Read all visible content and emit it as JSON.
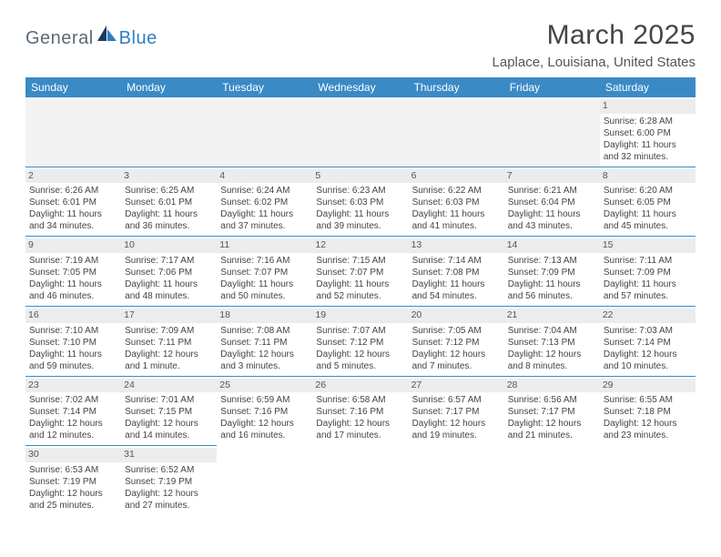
{
  "logo": {
    "text1": "General",
    "text2": "Blue"
  },
  "title": "March 2025",
  "location": "Laplace, Louisiana, United States",
  "header_bg": "#3a8ac6",
  "border_color": "#3a8ac6",
  "daynum_bg": "#ececec",
  "dow": [
    "Sunday",
    "Monday",
    "Tuesday",
    "Wednesday",
    "Thursday",
    "Friday",
    "Saturday"
  ],
  "weeks": [
    [
      null,
      null,
      null,
      null,
      null,
      null,
      {
        "n": "1",
        "sr": "Sunrise: 6:28 AM",
        "ss": "Sunset: 6:00 PM",
        "d1": "Daylight: 11 hours",
        "d2": "and 32 minutes."
      }
    ],
    [
      {
        "n": "2",
        "sr": "Sunrise: 6:26 AM",
        "ss": "Sunset: 6:01 PM",
        "d1": "Daylight: 11 hours",
        "d2": "and 34 minutes."
      },
      {
        "n": "3",
        "sr": "Sunrise: 6:25 AM",
        "ss": "Sunset: 6:01 PM",
        "d1": "Daylight: 11 hours",
        "d2": "and 36 minutes."
      },
      {
        "n": "4",
        "sr": "Sunrise: 6:24 AM",
        "ss": "Sunset: 6:02 PM",
        "d1": "Daylight: 11 hours",
        "d2": "and 37 minutes."
      },
      {
        "n": "5",
        "sr": "Sunrise: 6:23 AM",
        "ss": "Sunset: 6:03 PM",
        "d1": "Daylight: 11 hours",
        "d2": "and 39 minutes."
      },
      {
        "n": "6",
        "sr": "Sunrise: 6:22 AM",
        "ss": "Sunset: 6:03 PM",
        "d1": "Daylight: 11 hours",
        "d2": "and 41 minutes."
      },
      {
        "n": "7",
        "sr": "Sunrise: 6:21 AM",
        "ss": "Sunset: 6:04 PM",
        "d1": "Daylight: 11 hours",
        "d2": "and 43 minutes."
      },
      {
        "n": "8",
        "sr": "Sunrise: 6:20 AM",
        "ss": "Sunset: 6:05 PM",
        "d1": "Daylight: 11 hours",
        "d2": "and 45 minutes."
      }
    ],
    [
      {
        "n": "9",
        "sr": "Sunrise: 7:19 AM",
        "ss": "Sunset: 7:05 PM",
        "d1": "Daylight: 11 hours",
        "d2": "and 46 minutes."
      },
      {
        "n": "10",
        "sr": "Sunrise: 7:17 AM",
        "ss": "Sunset: 7:06 PM",
        "d1": "Daylight: 11 hours",
        "d2": "and 48 minutes."
      },
      {
        "n": "11",
        "sr": "Sunrise: 7:16 AM",
        "ss": "Sunset: 7:07 PM",
        "d1": "Daylight: 11 hours",
        "d2": "and 50 minutes."
      },
      {
        "n": "12",
        "sr": "Sunrise: 7:15 AM",
        "ss": "Sunset: 7:07 PM",
        "d1": "Daylight: 11 hours",
        "d2": "and 52 minutes."
      },
      {
        "n": "13",
        "sr": "Sunrise: 7:14 AM",
        "ss": "Sunset: 7:08 PM",
        "d1": "Daylight: 11 hours",
        "d2": "and 54 minutes."
      },
      {
        "n": "14",
        "sr": "Sunrise: 7:13 AM",
        "ss": "Sunset: 7:09 PM",
        "d1": "Daylight: 11 hours",
        "d2": "and 56 minutes."
      },
      {
        "n": "15",
        "sr": "Sunrise: 7:11 AM",
        "ss": "Sunset: 7:09 PM",
        "d1": "Daylight: 11 hours",
        "d2": "and 57 minutes."
      }
    ],
    [
      {
        "n": "16",
        "sr": "Sunrise: 7:10 AM",
        "ss": "Sunset: 7:10 PM",
        "d1": "Daylight: 11 hours",
        "d2": "and 59 minutes."
      },
      {
        "n": "17",
        "sr": "Sunrise: 7:09 AM",
        "ss": "Sunset: 7:11 PM",
        "d1": "Daylight: 12 hours",
        "d2": "and 1 minute."
      },
      {
        "n": "18",
        "sr": "Sunrise: 7:08 AM",
        "ss": "Sunset: 7:11 PM",
        "d1": "Daylight: 12 hours",
        "d2": "and 3 minutes."
      },
      {
        "n": "19",
        "sr": "Sunrise: 7:07 AM",
        "ss": "Sunset: 7:12 PM",
        "d1": "Daylight: 12 hours",
        "d2": "and 5 minutes."
      },
      {
        "n": "20",
        "sr": "Sunrise: 7:05 AM",
        "ss": "Sunset: 7:12 PM",
        "d1": "Daylight: 12 hours",
        "d2": "and 7 minutes."
      },
      {
        "n": "21",
        "sr": "Sunrise: 7:04 AM",
        "ss": "Sunset: 7:13 PM",
        "d1": "Daylight: 12 hours",
        "d2": "and 8 minutes."
      },
      {
        "n": "22",
        "sr": "Sunrise: 7:03 AM",
        "ss": "Sunset: 7:14 PM",
        "d1": "Daylight: 12 hours",
        "d2": "and 10 minutes."
      }
    ],
    [
      {
        "n": "23",
        "sr": "Sunrise: 7:02 AM",
        "ss": "Sunset: 7:14 PM",
        "d1": "Daylight: 12 hours",
        "d2": "and 12 minutes."
      },
      {
        "n": "24",
        "sr": "Sunrise: 7:01 AM",
        "ss": "Sunset: 7:15 PM",
        "d1": "Daylight: 12 hours",
        "d2": "and 14 minutes."
      },
      {
        "n": "25",
        "sr": "Sunrise: 6:59 AM",
        "ss": "Sunset: 7:16 PM",
        "d1": "Daylight: 12 hours",
        "d2": "and 16 minutes."
      },
      {
        "n": "26",
        "sr": "Sunrise: 6:58 AM",
        "ss": "Sunset: 7:16 PM",
        "d1": "Daylight: 12 hours",
        "d2": "and 17 minutes."
      },
      {
        "n": "27",
        "sr": "Sunrise: 6:57 AM",
        "ss": "Sunset: 7:17 PM",
        "d1": "Daylight: 12 hours",
        "d2": "and 19 minutes."
      },
      {
        "n": "28",
        "sr": "Sunrise: 6:56 AM",
        "ss": "Sunset: 7:17 PM",
        "d1": "Daylight: 12 hours",
        "d2": "and 21 minutes."
      },
      {
        "n": "29",
        "sr": "Sunrise: 6:55 AM",
        "ss": "Sunset: 7:18 PM",
        "d1": "Daylight: 12 hours",
        "d2": "and 23 minutes."
      }
    ],
    [
      {
        "n": "30",
        "sr": "Sunrise: 6:53 AM",
        "ss": "Sunset: 7:19 PM",
        "d1": "Daylight: 12 hours",
        "d2": "and 25 minutes."
      },
      {
        "n": "31",
        "sr": "Sunrise: 6:52 AM",
        "ss": "Sunset: 7:19 PM",
        "d1": "Daylight: 12 hours",
        "d2": "and 27 minutes."
      },
      null,
      null,
      null,
      null,
      null
    ]
  ]
}
